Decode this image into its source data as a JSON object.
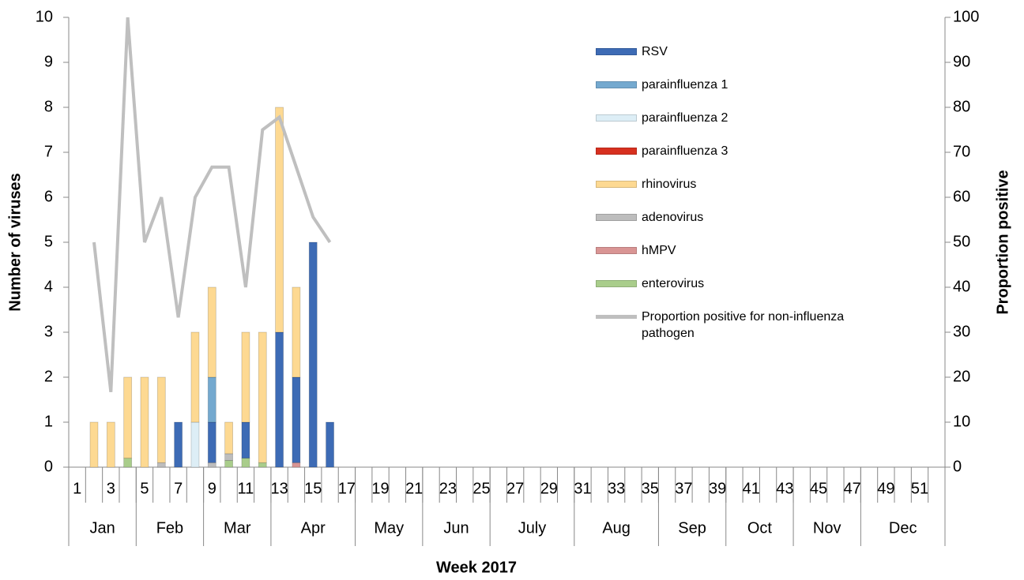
{
  "chart_data": {
    "type": "bar",
    "y_label": "Number of viruses",
    "y2_label": "Proportion positive",
    "x_label": "Week 2017",
    "categories": [
      "1",
      null,
      "3",
      null,
      "5",
      null,
      "7",
      null,
      "9",
      null,
      "11",
      null,
      "13",
      null,
      "15",
      null,
      "17",
      null,
      "19",
      null,
      "21",
      null,
      "23",
      null,
      "25",
      null,
      "27",
      null,
      "29",
      null,
      "31",
      null,
      "33",
      null,
      "35",
      null,
      "37",
      null,
      "39",
      null,
      "41",
      null,
      "43",
      null,
      "45",
      null,
      "47",
      null,
      "49",
      null,
      "51",
      null
    ],
    "month_groups": [
      {
        "label": "Jan",
        "weeks": 4
      },
      {
        "label": "Feb",
        "weeks": 4
      },
      {
        "label": "Mar",
        "weeks": 4
      },
      {
        "label": "Apr",
        "weeks": 5
      },
      {
        "label": "May",
        "weeks": 4
      },
      {
        "label": "Jun",
        "weeks": 4
      },
      {
        "label": "July",
        "weeks": 5
      },
      {
        "label": "Aug",
        "weeks": 5
      },
      {
        "label": "Sep",
        "weeks": 4
      },
      {
        "label": "Oct",
        "weeks": 4
      },
      {
        "label": "Nov",
        "weeks": 4
      },
      {
        "label": "Dec",
        "weeks": 5
      }
    ],
    "ylim": [
      0,
      10
    ],
    "yticks": [
      0,
      1,
      2,
      3,
      4,
      5,
      6,
      7,
      8,
      9,
      10
    ],
    "y2lim": [
      0,
      100
    ],
    "y2ticks": [
      0,
      10,
      20,
      30,
      40,
      50,
      60,
      70,
      80,
      90,
      100
    ],
    "series": [
      {
        "name": "enterovirus",
        "color": "#a9cd8b",
        "values": [
          null,
          null,
          null,
          0.2,
          null,
          null,
          null,
          null,
          null,
          0.15,
          0.2,
          0.1,
          null,
          null,
          null,
          null,
          null,
          null,
          null,
          null,
          null,
          null,
          null,
          null,
          null,
          null,
          null,
          null,
          null,
          null,
          null,
          null,
          null,
          null,
          null,
          null,
          null,
          null,
          null,
          null,
          null,
          null,
          null,
          null,
          null,
          null,
          null,
          null,
          null,
          null,
          null,
          null
        ]
      },
      {
        "name": "hMPV",
        "color": "#d99594",
        "values": [
          null,
          null,
          null,
          null,
          null,
          null,
          null,
          null,
          null,
          null,
          null,
          null,
          null,
          0.1,
          null,
          null,
          null,
          null,
          null,
          null,
          null,
          null,
          null,
          null,
          null,
          null,
          null,
          null,
          null,
          null,
          null,
          null,
          null,
          null,
          null,
          null,
          null,
          null,
          null,
          null,
          null,
          null,
          null,
          null,
          null,
          null,
          null,
          null,
          null,
          null,
          null,
          null
        ]
      },
      {
        "name": "adenovirus",
        "color": "#bdbdbd",
        "values": [
          null,
          null,
          null,
          null,
          null,
          0.1,
          null,
          null,
          0.1,
          0.15,
          null,
          null,
          null,
          null,
          null,
          null,
          null,
          null,
          null,
          null,
          null,
          null,
          null,
          null,
          null,
          null,
          null,
          null,
          null,
          null,
          null,
          null,
          null,
          null,
          null,
          null,
          null,
          null,
          null,
          null,
          null,
          null,
          null,
          null,
          null,
          null,
          null,
          null,
          null,
          null,
          null,
          null
        ]
      },
      {
        "name": "RSV",
        "color": "#3d6bb5",
        "values": [
          null,
          null,
          null,
          null,
          null,
          null,
          1,
          null,
          0.9,
          null,
          0.8,
          null,
          3,
          1.9,
          5,
          1,
          null,
          null,
          null,
          null,
          null,
          null,
          null,
          null,
          null,
          null,
          null,
          null,
          null,
          null,
          null,
          null,
          null,
          null,
          null,
          null,
          null,
          null,
          null,
          null,
          null,
          null,
          null,
          null,
          null,
          null,
          null,
          null,
          null,
          null,
          null,
          null
        ]
      },
      {
        "name": "parainfluenza 1",
        "color": "#74a9cf",
        "values": [
          null,
          null,
          null,
          null,
          null,
          null,
          null,
          null,
          1,
          null,
          null,
          null,
          null,
          null,
          null,
          null,
          null,
          null,
          null,
          null,
          null,
          null,
          null,
          null,
          null,
          null,
          null,
          null,
          null,
          null,
          null,
          null,
          null,
          null,
          null,
          null,
          null,
          null,
          null,
          null,
          null,
          null,
          null,
          null,
          null,
          null,
          null,
          null,
          null,
          null,
          null,
          null
        ]
      },
      {
        "name": "parainfluenza 2",
        "color": "#ddeef6",
        "values": [
          null,
          null,
          null,
          null,
          null,
          null,
          null,
          1,
          null,
          null,
          null,
          null,
          null,
          null,
          null,
          null,
          null,
          null,
          null,
          null,
          null,
          null,
          null,
          null,
          null,
          null,
          null,
          null,
          null,
          null,
          null,
          null,
          null,
          null,
          null,
          null,
          null,
          null,
          null,
          null,
          null,
          null,
          null,
          null,
          null,
          null,
          null,
          null,
          null,
          null,
          null,
          null
        ]
      },
      {
        "name": "parainfluenza 3",
        "color": "#d7301f",
        "values": [
          null,
          null,
          null,
          null,
          null,
          null,
          null,
          null,
          null,
          null,
          null,
          null,
          null,
          null,
          null,
          null,
          null,
          null,
          null,
          null,
          null,
          null,
          null,
          null,
          null,
          null,
          null,
          null,
          null,
          null,
          null,
          null,
          null,
          null,
          null,
          null,
          null,
          null,
          null,
          null,
          null,
          null,
          null,
          null,
          null,
          null,
          null,
          null,
          null,
          null,
          null,
          null
        ]
      },
      {
        "name": "rhinovirus",
        "color": "#fdd992",
        "values": [
          null,
          1,
          1,
          1.8,
          2,
          1.9,
          null,
          2,
          2,
          0.7,
          2,
          2.9,
          5,
          2,
          null,
          null,
          null,
          null,
          null,
          null,
          null,
          null,
          null,
          null,
          null,
          null,
          null,
          null,
          null,
          null,
          null,
          null,
          null,
          null,
          null,
          null,
          null,
          null,
          null,
          null,
          null,
          null,
          null,
          null,
          null,
          null,
          null,
          null,
          null,
          null,
          null,
          null
        ]
      },
      {
        "name": "Proportion positive for non-influenza pathogen",
        "color": "#bfbfbf",
        "type": "line",
        "axis": "y2",
        "values": [
          null,
          50,
          16.7,
          100,
          50,
          60,
          33.3,
          60,
          66.7,
          66.7,
          40,
          75,
          77.8,
          66.7,
          55.6,
          50,
          null,
          null,
          null,
          null,
          null,
          null,
          null,
          null,
          null,
          null,
          null,
          null,
          null,
          null,
          null,
          null,
          null,
          null,
          null,
          null,
          null,
          null,
          null,
          null,
          null,
          null,
          null,
          null,
          null,
          null,
          null,
          null,
          null,
          null,
          null,
          null
        ]
      }
    ],
    "legend_order": [
      3,
      4,
      5,
      6,
      7,
      2,
      1,
      0,
      8
    ]
  }
}
